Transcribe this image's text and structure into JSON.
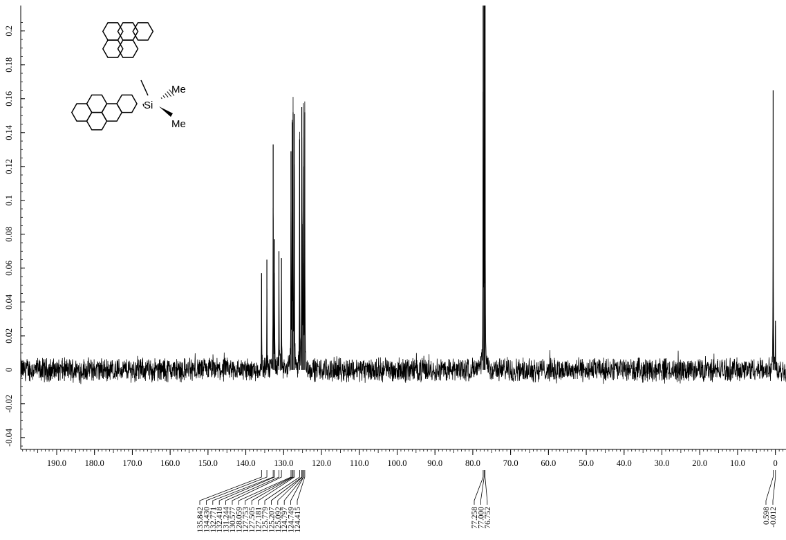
{
  "chart_data": {
    "type": "line",
    "title": "",
    "xlabel": "",
    "ylabel": "",
    "x_reversed": true,
    "xlim": [
      199.5,
      -2.8
    ],
    "ylim": [
      -0.047,
      0.215
    ],
    "x_ticks": [
      190,
      180,
      170,
      160,
      150,
      140,
      130,
      120,
      110,
      100,
      90,
      80,
      70,
      60,
      50,
      40,
      30,
      20,
      10,
      0
    ],
    "x_tick_labels": [
      "190.0",
      "180.0",
      "170.0",
      "160.0",
      "150.0",
      "140.0",
      "130.0",
      "120.0",
      "110.0",
      "100.0",
      "90.0",
      "80.0",
      "70.0",
      "60.0",
      "50.0",
      "40.0",
      "30.0",
      "20.0",
      "10.0",
      "0"
    ],
    "y_ticks": [
      -0.04,
      -0.02,
      0,
      0.02,
      0.04,
      0.06,
      0.08,
      0.1,
      0.12,
      0.14,
      0.16,
      0.18,
      0.2
    ],
    "y_tick_labels": [
      "-0.04",
      "-0.02",
      "0",
      "0.02",
      "0.04",
      "0.06",
      "0.08",
      "0.1",
      "0.12",
      "0.14",
      "0.16",
      "0.18",
      "0.2"
    ],
    "grid": false,
    "noise_amplitude": 0.006,
    "series": [
      {
        "peaks": [
          {
            "x": 135.842,
            "y": 0.057
          },
          {
            "x": 134.43,
            "y": 0.065
          },
          {
            "x": 132.771,
            "y": 0.133
          },
          {
            "x": 132.418,
            "y": 0.077
          },
          {
            "x": 131.244,
            "y": 0.07
          },
          {
            "x": 130.577,
            "y": 0.066
          },
          {
            "x": 128.059,
            "y": 0.129
          },
          {
            "x": 127.753,
            "y": 0.146
          },
          {
            "x": 127.505,
            "y": 0.152
          },
          {
            "x": 127.181,
            "y": 0.151
          },
          {
            "x": 125.779,
            "y": 0.136
          },
          {
            "x": 125.207,
            "y": 0.155
          },
          {
            "x": 125.092,
            "y": 0.086
          },
          {
            "x": 124.797,
            "y": 0.063
          },
          {
            "x": 124.749,
            "y": 0.12
          },
          {
            "x": 124.415,
            "y": 0.152
          },
          {
            "x": 77.258,
            "y": 0.215
          },
          {
            "x": 77.0,
            "y": 0.215
          },
          {
            "x": 76.752,
            "y": 0.215
          },
          {
            "x": 0.598,
            "y": 0.165
          },
          {
            "x": -0.012,
            "y": 0.029
          }
        ]
      }
    ],
    "peak_label_groups": [
      {
        "labels": [
          "135.842",
          "134.430",
          "132.771",
          "132.418",
          "131.244",
          "130.577",
          "128.059",
          "127.753",
          "127.505",
          "127.181",
          "125.779",
          "125.207",
          "125.092",
          "124.797",
          "124.749",
          "124.415"
        ]
      },
      {
        "labels": [
          "77.258",
          "77.000",
          "76.752"
        ]
      },
      {
        "labels": [
          "0.598",
          "-0.012"
        ]
      }
    ],
    "annotations": {
      "molecule_labels": [
        "Si",
        "Me",
        "Me"
      ]
    }
  }
}
